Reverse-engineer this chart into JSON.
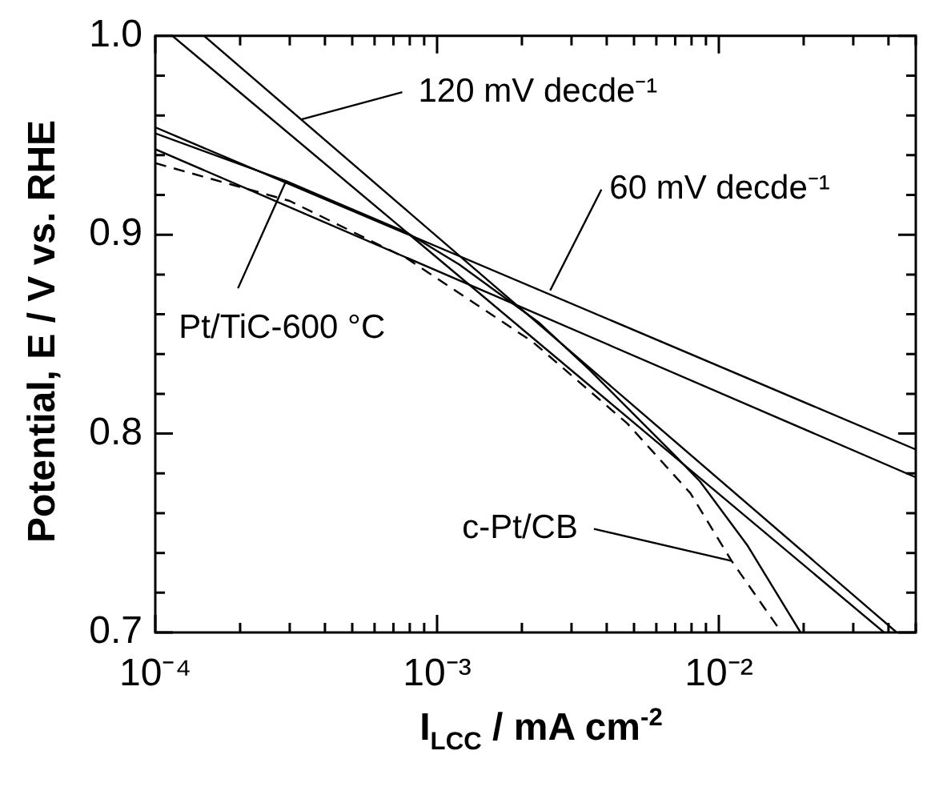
{
  "chart_data": {
    "type": "line",
    "xlabel": "I$_{LCC}$ / mA cm$^{-2}$",
    "ylabel": "Potential, E / V vs. RHE",
    "log": "x",
    "xlim": [
      0.0001,
      0.05
    ],
    "xticks": [
      {
        "value": 0.0001,
        "label": "10⁻⁴"
      },
      {
        "value": 0.0002,
        "label": null
      },
      {
        "value": 0.0003,
        "label": null
      },
      {
        "value": 0.0004,
        "label": null
      },
      {
        "value": 0.0005,
        "label": null
      },
      {
        "value": 0.0006,
        "label": null
      },
      {
        "value": 0.0007,
        "label": null
      },
      {
        "value": 0.0008,
        "label": null
      },
      {
        "value": 0.0009,
        "label": null
      },
      {
        "value": 0.001,
        "label": "10⁻³"
      },
      {
        "value": 0.002,
        "label": null
      },
      {
        "value": 0.003,
        "label": null
      },
      {
        "value": 0.004,
        "label": null
      },
      {
        "value": 0.005,
        "label": null
      },
      {
        "value": 0.006,
        "label": null
      },
      {
        "value": 0.007,
        "label": null
      },
      {
        "value": 0.008,
        "label": null
      },
      {
        "value": 0.009,
        "label": null
      },
      {
        "value": 0.01,
        "label": "10⁻²"
      },
      {
        "value": 0.02,
        "label": null
      },
      {
        "value": 0.03,
        "label": null
      },
      {
        "value": 0.04,
        "label": null
      },
      {
        "value": 0.05,
        "label": null
      }
    ],
    "ylim": [
      0.7,
      1.0
    ],
    "yticks": [
      0.7,
      {
        "value": 0.72,
        "label": null
      },
      {
        "value": 0.74,
        "label": null
      },
      {
        "value": 0.76,
        "label": null
      },
      {
        "value": 0.78,
        "label": null
      },
      0.8,
      {
        "value": 0.82,
        "label": null
      },
      {
        "value": 0.84,
        "label": null
      },
      {
        "value": 0.86,
        "label": null
      },
      {
        "value": 0.88,
        "label": null
      },
      0.9,
      {
        "value": 0.92,
        "label": null
      },
      {
        "value": 0.94,
        "label": null
      },
      {
        "value": 0.96,
        "label": null
      },
      {
        "value": 0.98,
        "label": null
      },
      {
        "value": 1.0,
        "label": "1.0"
      }
    ],
    "marker": "none",
    "series": [
      {
        "color": "#000000",
        "line_style": "solid",
        "x": [
          0.0001,
          0.000291,
          0.000783,
          0.0012,
          0.00229,
          0.00348,
          0.00698,
          0.00857,
          0.0126,
          0.0195
        ],
        "values": [
          0.951,
          0.927,
          0.901,
          0.885,
          0.856,
          0.832,
          0.789,
          0.776,
          0.744,
          0.7
        ]
      },
      {
        "color": "#000000",
        "line_style": "dashed",
        "x": [
          0.0001,
          0.0003,
          0.000783,
          0.00219,
          0.00474,
          0.00793,
          0.0111,
          0.0167
        ],
        "values": [
          0.936,
          0.917,
          0.888,
          0.846,
          0.805,
          0.77,
          0.736,
          0.7
        ]
      },
      {
        "color": "#000000",
        "line_style": "solid",
        "x": [
          0.000115,
          0.0386
        ],
        "values": [
          1.0,
          0.7
        ]
      },
      {
        "color": "#000000",
        "line_style": "solid",
        "x": [
          0.000149,
          0.0428
        ],
        "values": [
          1.0,
          0.7
        ]
      },
      {
        "color": "#000000",
        "line_style": "solid",
        "x": [
          0.0001,
          0.05
        ],
        "values": [
          0.954,
          0.792
        ]
      },
      {
        "color": "#000000",
        "line_style": "solid",
        "x": [
          0.0001,
          0.05
        ],
        "values": [
          0.943,
          0.778
        ]
      }
    ],
    "annotations": [
      {
        "text": "120 mV decde⁻¹",
        "x": 0.00033,
        "y": 0.958
      },
      {
        "text": "60 mV decde⁻¹",
        "x": 0.00252,
        "y": 0.872
      },
      {
        "text": "Pt/TiC-600 °C",
        "x": 0.000291,
        "y": 0.927
      },
      {
        "text": "c-Pt/CB",
        "x": 0.0111,
        "y": 0.736
      }
    ]
  }
}
